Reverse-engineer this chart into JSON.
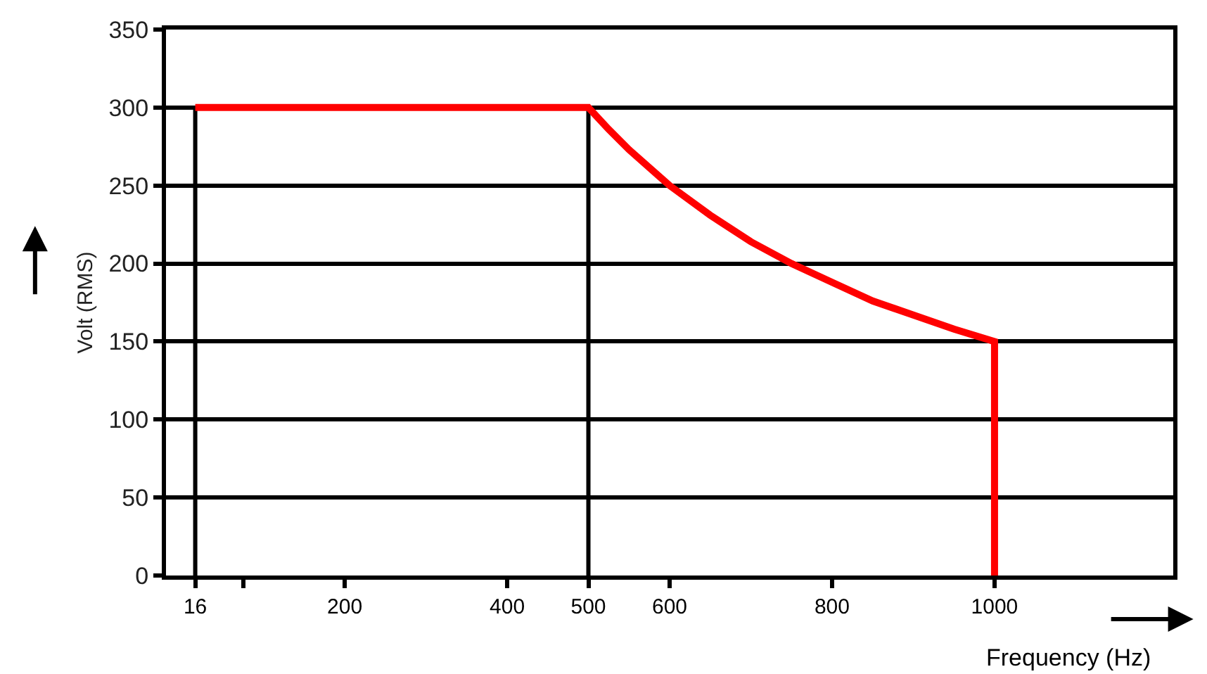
{
  "chart_data": {
    "type": "line",
    "xlabel": "Frequency (Hz)",
    "ylabel": "Volt (RMS)",
    "series": [
      {
        "color": "#ff0000",
        "x": [
          16,
          500,
          525,
          550,
          600,
          650,
          700,
          750,
          800,
          850,
          900,
          950,
          1000,
          1000
        ],
        "values": [
          300,
          300,
          286,
          273,
          250,
          231,
          214,
          200,
          188,
          176,
          167,
          158,
          150,
          0
        ]
      }
    ],
    "xlim": [
      -20,
      1220
    ],
    "xticks": [
      16,
      {
        "value": 75,
        "label": null
      },
      200,
      400,
      500,
      600,
      800,
      1000
    ],
    "ylim": [
      0,
      350
    ],
    "yticks": [
      0,
      50,
      100,
      150,
      200,
      250,
      300,
      350
    ],
    "grid": "y",
    "marker": "none",
    "line_style": "solid",
    "ref_lines": [
      {
        "axis": "x",
        "value": 16,
        "color": "#000000"
      },
      {
        "axis": "x",
        "value": 500,
        "color": "#000000"
      }
    ]
  }
}
